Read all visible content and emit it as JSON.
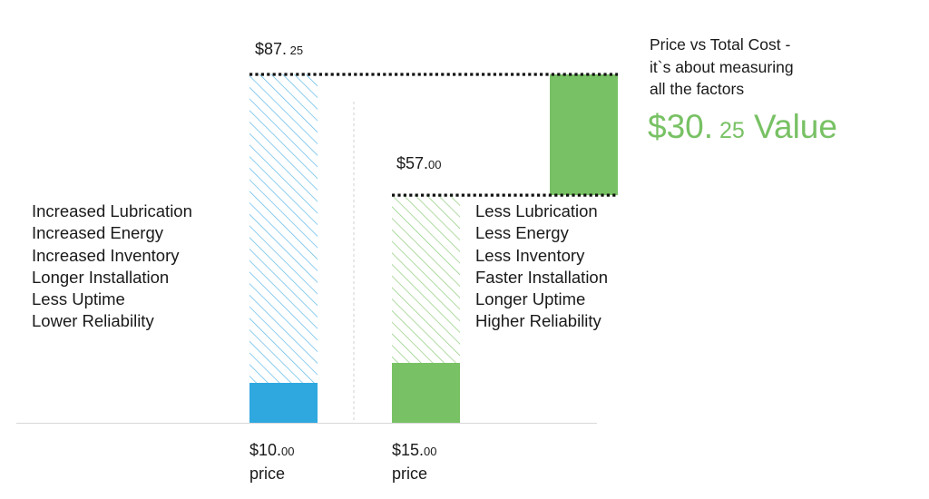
{
  "headline": {
    "lines": [
      "Price vs Total Cost -",
      "it`s about measuring",
      "all the factors"
    ]
  },
  "value_callout": {
    "whole": "$30.",
    "cents": " 25",
    "suffix": " Value"
  },
  "left_factors": [
    "Increased Lubrication",
    "Increased Energy",
    "Increased Inventory",
    "Longer Installation",
    "Less Uptime",
    "Lower Reliability"
  ],
  "right_factors": [
    "Less Lubrication",
    "Less Energy",
    "Less Inventory",
    "Faster Installation",
    "Longer Uptime",
    "Higher Reliability"
  ],
  "chart_data": {
    "type": "bar",
    "categories": [
      "$10.00 price",
      "$15.00 price"
    ],
    "price_values": [
      10.0,
      15.0
    ],
    "total_cost_values": [
      87.25,
      57.0
    ],
    "value_difference": 30.25,
    "price_labels": [
      {
        "main": "$10.",
        "cents": "00",
        "word": "price"
      },
      {
        "main": "$15.",
        "cents": "00",
        "word": "price"
      }
    ],
    "total_labels": [
      {
        "main": "$87.",
        "cents": " 25"
      },
      {
        "main": "$57.",
        "cents": "00"
      }
    ],
    "ylim": [
      0,
      87.25
    ],
    "grid": false,
    "legend": "none",
    "colors": {
      "blue": "#2fa8e0",
      "green": "#78c164",
      "blue_hatch": "#5eb9e8",
      "green_hatch": "#8fcb7c"
    }
  }
}
